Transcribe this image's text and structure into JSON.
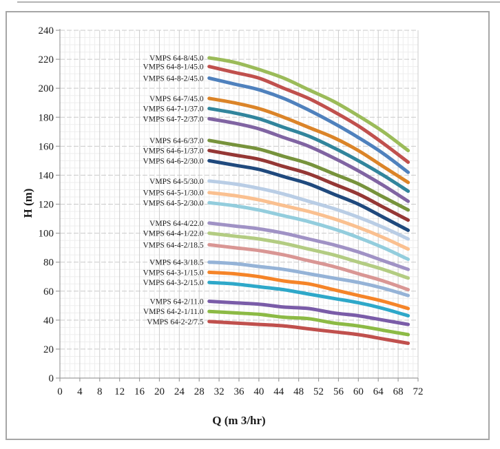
{
  "chart_data": {
    "type": "line",
    "title": "",
    "xlabel": "Q (m 3/hr)",
    "ylabel": "H (m)",
    "xlim": [
      0,
      72
    ],
    "ylim": [
      0,
      240
    ],
    "x_ticks": [
      0,
      4,
      8,
      12,
      16,
      20,
      24,
      28,
      32,
      36,
      40,
      44,
      48,
      52,
      56,
      60,
      64,
      68,
      72
    ],
    "y_ticks": [
      0,
      20,
      40,
      60,
      80,
      100,
      120,
      140,
      160,
      180,
      200,
      220,
      240
    ],
    "grid": true,
    "minor_grid": true,
    "legend_position": "inline-labels-left-of-curves",
    "x": [
      30,
      35,
      40,
      45,
      50,
      55,
      60,
      65,
      70
    ],
    "series": [
      {
        "name": "VMPS 64-8/45.0",
        "color": "#9BBB59",
        "values": [
          221,
          218,
          213,
          207,
          199,
          191,
          181,
          170,
          157
        ]
      },
      {
        "name": "VMPS 64-8-1/45.0",
        "color": "#C0504D",
        "values": [
          215,
          211,
          207,
          200,
          193,
          184,
          174,
          162,
          149
        ]
      },
      {
        "name": "VMPS 64-8-2/45.0",
        "color": "#4F81BD",
        "values": [
          207,
          203,
          199,
          193,
          185,
          176,
          166,
          155,
          142
        ]
      },
      {
        "name": "VMPS 64-7/45.0",
        "color": "#DB8428",
        "values": [
          193,
          190,
          186,
          180,
          173,
          166,
          157,
          146,
          135
        ]
      },
      {
        "name": "VMPS 64-7-1/37.0",
        "color": "#31859C",
        "values": [
          186,
          183,
          179,
          173,
          167,
          159,
          150,
          140,
          129
        ]
      },
      {
        "name": "VMPS 64-7-2/37.0",
        "color": "#8064A2",
        "values": [
          179,
          176,
          172,
          166,
          160,
          152,
          143,
          133,
          122
        ]
      },
      {
        "name": "VMPS 64-6/37.0",
        "color": "#77933C",
        "values": [
          164,
          161,
          158,
          153,
          148,
          141,
          134,
          125,
          116
        ]
      },
      {
        "name": "VMPS 64-6-1/37.0",
        "color": "#953735",
        "values": [
          157,
          154,
          151,
          146,
          141,
          134,
          127,
          118,
          109
        ]
      },
      {
        "name": "VMPS 64-6-2/30.0",
        "color": "#1F497D",
        "values": [
          150,
          147,
          144,
          139,
          134,
          127,
          120,
          111,
          102
        ]
      },
      {
        "name": "VMPS 64-5/30.0",
        "color": "#B9CDE5",
        "values": [
          136,
          134,
          131,
          127,
          122,
          117,
          111,
          104,
          96
        ]
      },
      {
        "name": "VMPS 64-5-1/30.0",
        "color": "#FAC090",
        "values": [
          128,
          126,
          123,
          119,
          115,
          110,
          104,
          97,
          89
        ]
      },
      {
        "name": "VMPS 64-5-2/30.0",
        "color": "#93CDDD",
        "values": [
          121,
          119,
          116,
          112,
          108,
          103,
          97,
          90,
          82
        ]
      },
      {
        "name": "VMPS 64-4/22.0",
        "color": "#A092C5",
        "values": [
          107,
          105,
          103,
          100,
          96,
          92,
          87,
          81,
          75
        ]
      },
      {
        "name": "VMPS 64-4-1/22.0",
        "color": "#B3CC82",
        "values": [
          100,
          98,
          96,
          93,
          89,
          85,
          80,
          75,
          69
        ]
      },
      {
        "name": "VMPS 64-4-2/18.5",
        "color": "#D99694",
        "values": [
          92,
          90,
          88,
          85,
          81,
          77,
          72,
          67,
          61
        ]
      },
      {
        "name": "VMPS 64-3/18.5",
        "color": "#95B3D7",
        "values": [
          80,
          79,
          77,
          75,
          72,
          69,
          66,
          62,
          57
        ]
      },
      {
        "name": "VMPS 64-3-1/15.0",
        "color": "#F58428",
        "values": [
          73,
          72,
          70,
          67,
          65,
          61,
          57,
          53,
          48
        ]
      },
      {
        "name": "VMPS 64-3-2/15.0",
        "color": "#2EA8C9",
        "values": [
          66,
          65,
          63,
          61,
          58,
          55,
          52,
          48,
          43
        ]
      },
      {
        "name": "VMPS 64-2/11.0",
        "color": "#7A5CA8",
        "values": [
          53,
          52,
          51,
          49,
          48,
          45,
          43,
          40,
          37
        ]
      },
      {
        "name": "VMPS 64-2-1/11.0",
        "color": "#8CBA45",
        "values": [
          46,
          45,
          44,
          42,
          41,
          38,
          36,
          33,
          30
        ]
      },
      {
        "name": "VMPS 64-2-2/7.5",
        "color": "#C0504D",
        "values": [
          39,
          38,
          37,
          36,
          34,
          32,
          30,
          27,
          24
        ]
      }
    ]
  }
}
